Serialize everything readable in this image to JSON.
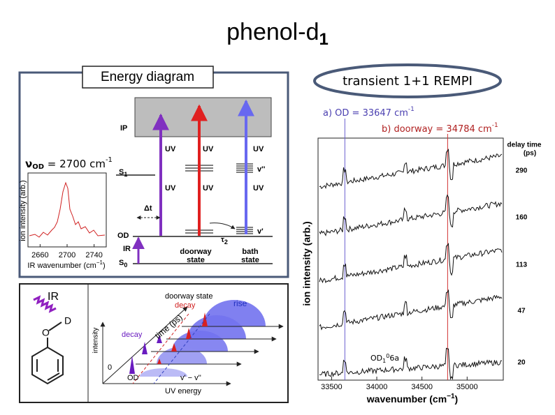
{
  "title": {
    "text": "phenol-d",
    "sub": "1"
  },
  "energy_diagram": {
    "header": "Energy diagram",
    "vod": {
      "symbol": "ν",
      "sub": "OD",
      "text": " = 2700 cm",
      "sup": "-1"
    },
    "levels": {
      "ip": "IP",
      "s1": "S",
      "s1_sub": "1",
      "od": "OD",
      "ir": "IR",
      "s0": "S",
      "s0_sub": "0",
      "v2": "v''",
      "v1": "v'"
    },
    "uv_labels": [
      "UV",
      "UV",
      "UV",
      "UV",
      "UV",
      "UV"
    ],
    "delta_t": "Δt",
    "tau": "τ",
    "tau_sub": "2",
    "doorway_state": [
      "doorway",
      "state"
    ],
    "bath_state": [
      "bath",
      "state"
    ],
    "inset": {
      "ylabel": "ion intensity (arb.)",
      "xlabel": "IR wavenumber (cm",
      "xlabel_sup": "−1",
      "xlabel_end": ")",
      "xlim": [
        2642,
        2758
      ],
      "xticks": [
        2660,
        2700,
        2740
      ]
    }
  },
  "scheme": {
    "ir": "IR",
    "d": "D",
    "o": "O",
    "doorway_state": "doorway state",
    "decay_top": "decay",
    "rise": "rise",
    "time_axis": "time (ps)",
    "decay_left": "decay",
    "intensity": "intensity",
    "zero": 0,
    "od": "OD",
    "vv": "v' − v''",
    "uv_energy": "UV energy"
  },
  "rempi": {
    "header": "transient 1+1 REMPI",
    "line_a": {
      "prefix": "a) OD = ",
      "value": 33647,
      "unit": " cm",
      "sup": "-1"
    },
    "line_b": {
      "prefix": "b) doorway = ",
      "value": 34784,
      "unit": " cm",
      "sup": "-1"
    },
    "spectrum": {
      "xlim": [
        33350,
        35400
      ],
      "xticks": [
        33500,
        34000,
        34500,
        35000
      ],
      "xlabel": "wavenumber (cm",
      "xlabel_sup": "−1",
      "xlabel_end": ")",
      "ylabel": "ion intensity (arb.)",
      "delay_header": [
        "delay time",
        "(ps)"
      ],
      "delays": [
        290,
        160,
        113,
        47,
        20
      ],
      "peak_label": {
        "text": "OD",
        "sub": "1",
        "sup": "0",
        "end": "6a"
      }
    }
  }
}
